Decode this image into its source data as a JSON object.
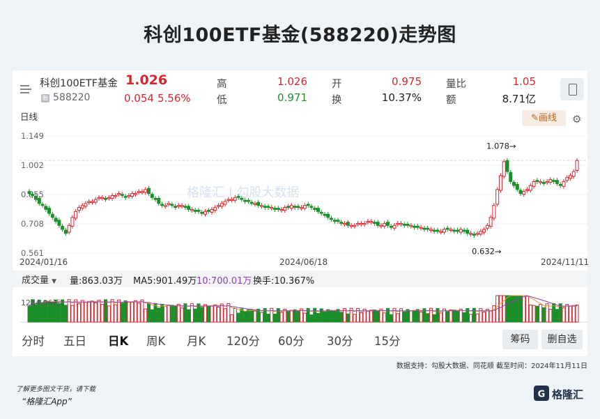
{
  "page_title": "科创100ETF基金(588220)走势图",
  "quote": {
    "name": "科创100ETF基金",
    "price": "1.026",
    "badge": "融",
    "code": "588220",
    "change": "0.054",
    "change_pct": "5.56%",
    "stats": [
      {
        "label": "高",
        "value": "1.026",
        "color": "red"
      },
      {
        "label": "开",
        "value": "0.975",
        "color": "red"
      },
      {
        "label": "量比",
        "value": "1.05",
        "color": "red"
      },
      {
        "label": "低",
        "value": "0.971",
        "color": "green"
      },
      {
        "label": "换",
        "value": "10.37%",
        "color": "dark"
      },
      {
        "label": "额",
        "value": "8.71亿",
        "color": "dark"
      }
    ]
  },
  "chart_header": {
    "period_label": "日线",
    "draw_button": "画线",
    "watermark": "格隆汇 | 勾股大数据"
  },
  "chart_data": {
    "type": "candlestick",
    "y_ticks": [
      "1.149",
      "1.002",
      "0.855",
      "0.708",
      "0.561"
    ],
    "ylim": [
      0.561,
      1.149
    ],
    "dates": [
      "2024/01/16",
      "2024/06/18",
      "2024/11/11"
    ],
    "annotations": [
      {
        "text": "1.078→",
        "value": 1.078
      },
      {
        "text": "0.632→",
        "value": 0.632
      }
    ],
    "close_series": [
      0.86,
      0.85,
      0.83,
      0.81,
      0.8,
      0.78,
      0.76,
      0.74,
      0.72,
      0.7,
      0.68,
      0.66,
      0.7,
      0.74,
      0.77,
      0.79,
      0.8,
      0.81,
      0.82,
      0.82,
      0.83,
      0.84,
      0.84,
      0.83,
      0.84,
      0.85,
      0.85,
      0.86,
      0.85,
      0.84,
      0.85,
      0.86,
      0.86,
      0.87,
      0.87,
      0.88,
      0.86,
      0.84,
      0.83,
      0.81,
      0.8,
      0.8,
      0.81,
      0.8,
      0.79,
      0.8,
      0.8,
      0.79,
      0.78,
      0.78,
      0.77,
      0.77,
      0.76,
      0.77,
      0.77,
      0.78,
      0.79,
      0.8,
      0.81,
      0.82,
      0.83,
      0.83,
      0.84,
      0.84,
      0.83,
      0.82,
      0.82,
      0.81,
      0.81,
      0.8,
      0.8,
      0.79,
      0.79,
      0.79,
      0.78,
      0.78,
      0.78,
      0.79,
      0.79,
      0.8,
      0.79,
      0.79,
      0.79,
      0.8,
      0.8,
      0.79,
      0.78,
      0.77,
      0.76,
      0.75,
      0.74,
      0.73,
      0.72,
      0.72,
      0.71,
      0.71,
      0.7,
      0.7,
      0.7,
      0.71,
      0.71,
      0.71,
      0.72,
      0.72,
      0.71,
      0.7,
      0.7,
      0.71,
      0.7,
      0.69,
      0.7,
      0.71,
      0.71,
      0.7,
      0.7,
      0.7,
      0.69,
      0.69,
      0.69,
      0.68,
      0.68,
      0.68,
      0.67,
      0.67,
      0.67,
      0.68,
      0.68,
      0.68,
      0.67,
      0.67,
      0.68,
      0.67,
      0.66,
      0.66,
      0.65,
      0.66,
      0.67,
      0.68,
      0.7,
      0.74,
      0.8,
      0.88,
      0.95,
      1.02,
      0.97,
      0.92,
      0.9,
      0.88,
      0.86,
      0.87,
      0.88,
      0.9,
      0.92,
      0.92,
      0.92,
      0.91,
      0.92,
      0.93,
      0.92,
      0.91,
      0.9,
      0.92,
      0.94,
      0.95,
      0.97,
      1.026
    ],
    "volume": {
      "label_select": "成交量",
      "vol": "量:863.03万",
      "ma5": "MA5:901.49万",
      "ma10": "10:700.01万",
      "turnover": "换手:10.367%",
      "max_label": "1284.96万"
    }
  },
  "period_tabs": [
    "分时",
    "五日",
    "日K",
    "周K",
    "月K",
    "120分",
    "60分",
    "30分",
    "15分"
  ],
  "active_tab": "日K",
  "buttons": {
    "chip": "筹码",
    "remove": "删自选"
  },
  "footer": {
    "source": "数据支持：勾股大数据、同花顺  截至时间：2024年11月11日",
    "promo_line1": "了解更多图文干货，请下载",
    "promo_line2": "“格隆汇App”",
    "logo_text": "格隆汇"
  },
  "colors": {
    "up": "#d9242d",
    "down": "#1d8f2a",
    "background": "#eef3f7"
  }
}
